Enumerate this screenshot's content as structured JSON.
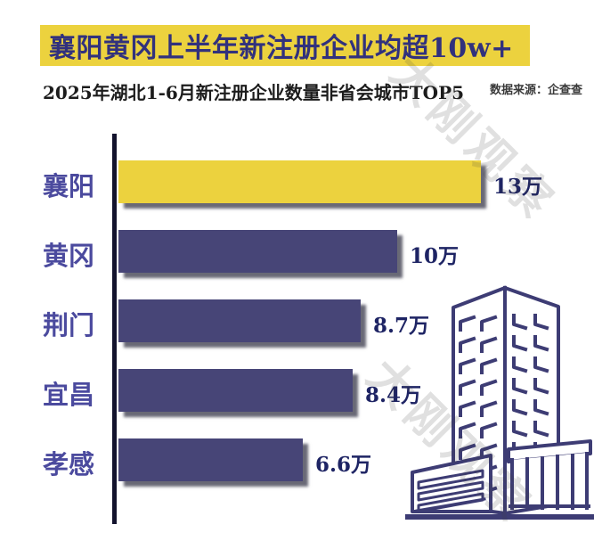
{
  "header": {
    "title": "襄阳黄冈上半年新注册企业均超10w+",
    "subtitle": "2025年湖北1-6月新注册企业数量非省会城市TOP5",
    "source": "数据来源：企查查",
    "watermark": "大刚观察"
  },
  "chart_data": {
    "type": "bar",
    "orientation": "horizontal",
    "title": "襄阳黄冈上半年新注册企业均超10w+",
    "subtitle": "2025年湖北1-6月新注册企业数量非省会城市TOP5",
    "unit": "万",
    "categories": [
      "襄阳",
      "黄冈",
      "荆门",
      "宜昌",
      "孝感"
    ],
    "values": [
      13,
      10,
      8.7,
      8.4,
      6.6
    ],
    "value_labels": [
      "13万",
      "10万",
      "8.7万",
      "8.4万",
      "6.6万"
    ],
    "xlim": [
      0,
      13
    ],
    "highlight_index": 0,
    "grid": false,
    "legend": false,
    "colors": {
      "highlight_bar": "#ecd23e",
      "bar": "#474577",
      "axis": "#13132d",
      "category_label": "#4b4a9e",
      "value_label": "#1e2464",
      "title_bg": "#ecd23e",
      "title_text": "#31317d",
      "building_line": "#3d3c74"
    }
  },
  "icons": {
    "building": "office-building-line-art"
  }
}
